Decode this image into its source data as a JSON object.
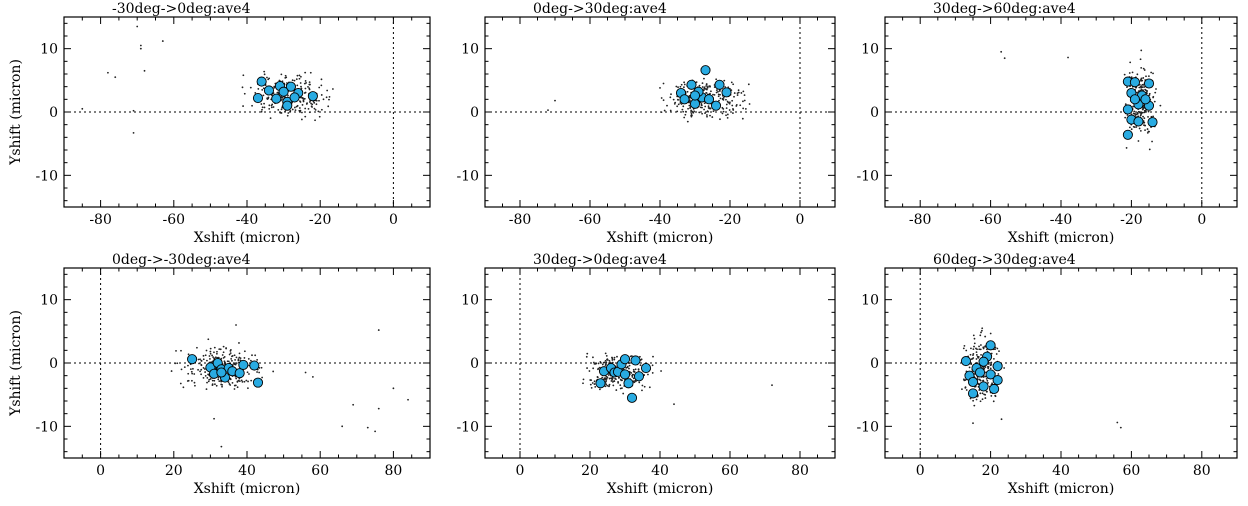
{
  "figure": {
    "shared_ylabel": "Yshift (micron)",
    "colors": {
      "points": "#222222",
      "markers": "#29abe2",
      "marker_edge": "#000000",
      "axis": "#000000",
      "reference_lines": "#000000"
    }
  },
  "chart_data": [
    {
      "type": "scatter",
      "title": "-30deg->0deg:ave4",
      "xlabel": "Xshift (micron)",
      "ylabel": "Yshift (micron)",
      "xlim": [
        -90,
        10
      ],
      "ylim": [
        -15,
        15
      ],
      "xticks": [
        -80,
        -60,
        -40,
        -20,
        0
      ],
      "yticks": [
        -10,
        0,
        10
      ],
      "reference_lines": {
        "x": 0,
        "y": 0
      },
      "cloud": {
        "center": [
          -28,
          2.5
        ],
        "spread": [
          5,
          1.5
        ],
        "count": 260
      },
      "outliers": [
        [
          -85,
          0.5
        ],
        [
          -78,
          6.2
        ],
        [
          -76,
          5.5
        ],
        [
          -70,
          13.5
        ],
        [
          -69,
          10.5
        ],
        [
          -69,
          10
        ],
        [
          -68,
          6.5
        ],
        [
          -63,
          11.2
        ],
        [
          -71,
          -3.3
        ],
        [
          -71,
          0.2
        ],
        [
          -41,
          5.8
        ]
      ],
      "markers": [
        [
          -36,
          4.8
        ],
        [
          -37,
          2.2
        ],
        [
          -34,
          3.4
        ],
        [
          -31,
          4.1
        ],
        [
          -32,
          2.1
        ],
        [
          -29,
          1.6
        ],
        [
          -28,
          4.0
        ],
        [
          -26,
          3.0
        ],
        [
          -30,
          3.2
        ],
        [
          -22,
          2.5
        ],
        [
          -27,
          2.3
        ],
        [
          -29,
          1.0
        ]
      ]
    },
    {
      "type": "scatter",
      "title": "0deg->30deg:ave4",
      "xlabel": "Xshift (micron)",
      "ylabel": "",
      "xlim": [
        -90,
        10
      ],
      "ylim": [
        -15,
        15
      ],
      "xticks": [
        -80,
        -60,
        -40,
        -20,
        0
      ],
      "yticks": [
        -10,
        0,
        10
      ],
      "reference_lines": {
        "x": 0,
        "y": 0
      },
      "cloud": {
        "center": [
          -27,
          2.0
        ],
        "spread": [
          5,
          1.5
        ],
        "count": 280
      },
      "outliers": [
        [
          -70,
          1.8
        ],
        [
          -72,
          0.3
        ],
        [
          -39,
          4.5
        ],
        [
          -40,
          3.8
        ],
        [
          -38,
          1.0
        ]
      ],
      "markers": [
        [
          -34,
          3.0
        ],
        [
          -33,
          2.0
        ],
        [
          -31,
          4.3
        ],
        [
          -30,
          1.3
        ],
        [
          -28,
          2.3
        ],
        [
          -27,
          6.6
        ],
        [
          -26,
          2.0
        ],
        [
          -24,
          1.0
        ],
        [
          -23,
          4.3
        ],
        [
          -29,
          3.2
        ],
        [
          -21,
          3.1
        ],
        [
          -30,
          2.6
        ]
      ]
    },
    {
      "type": "scatter",
      "title": "30deg->60deg:ave4",
      "xlabel": "Xshift (micron)",
      "ylabel": "",
      "xlim": [
        -90,
        10
      ],
      "ylim": [
        -15,
        15
      ],
      "xticks": [
        -80,
        -60,
        -40,
        -20,
        0
      ],
      "yticks": [
        -10,
        0,
        10
      ],
      "reference_lines": {
        "x": 0,
        "y": 0
      },
      "cloud": {
        "center": [
          -17.5,
          1.5
        ],
        "spread": [
          2.2,
          2.8
        ],
        "count": 230
      },
      "outliers": [
        [
          -57,
          9.5
        ],
        [
          -56,
          8.5
        ],
        [
          -38,
          8.6
        ]
      ],
      "markers": [
        [
          -21,
          4.8
        ],
        [
          -19,
          4.7
        ],
        [
          -15,
          4.5
        ],
        [
          -20,
          3.0
        ],
        [
          -17,
          2.6
        ],
        [
          -21,
          0.4
        ],
        [
          -18,
          1.2
        ],
        [
          -15,
          1.0
        ],
        [
          -16,
          2.0
        ],
        [
          -20,
          -1.2
        ],
        [
          -18,
          -1.5
        ],
        [
          -21,
          -3.6
        ],
        [
          -14,
          -1.6
        ],
        [
          -19,
          2.0
        ]
      ]
    },
    {
      "type": "scatter",
      "title": "0deg->-30deg:ave4",
      "xlabel": "Xshift (micron)",
      "ylabel": "Yshift (micron)",
      "xlim": [
        -10,
        90
      ],
      "ylim": [
        -15,
        15
      ],
      "xticks": [
        0,
        20,
        40,
        60,
        80
      ],
      "yticks": [
        -10,
        0,
        10
      ],
      "reference_lines": {
        "x": 0,
        "y": 0
      },
      "cloud": {
        "center": [
          33,
          -0.8
        ],
        "spread": [
          5,
          1.6
        ],
        "count": 270
      },
      "outliers": [
        [
          37,
          6.0
        ],
        [
          76,
          5.2
        ],
        [
          31,
          -8.8
        ],
        [
          33,
          -13.2
        ],
        [
          56,
          -1.5
        ],
        [
          58,
          -2.2
        ],
        [
          66,
          -10.0
        ],
        [
          69,
          -6.6
        ],
        [
          73,
          -10.2
        ],
        [
          75,
          -10.8
        ],
        [
          76,
          -7.2
        ],
        [
          80,
          -4.0
        ],
        [
          84,
          -5.8
        ]
      ],
      "markers": [
        [
          25,
          0.6
        ],
        [
          30,
          -0.7
        ],
        [
          31,
          -1.7
        ],
        [
          32,
          0.0
        ],
        [
          33,
          -1.0
        ],
        [
          34,
          -2.3
        ],
        [
          35,
          -0.8
        ],
        [
          36,
          -1.3
        ],
        [
          38,
          -1.6
        ],
        [
          39,
          -0.3
        ],
        [
          42,
          -0.4
        ],
        [
          43,
          -3.1
        ],
        [
          33,
          -1.5
        ]
      ]
    },
    {
      "type": "scatter",
      "title": "30deg->0deg:ave4",
      "xlabel": "Xshift (micron)",
      "ylabel": "",
      "xlim": [
        -10,
        90
      ],
      "ylim": [
        -15,
        15
      ],
      "xticks": [
        0,
        20,
        40,
        60,
        80
      ],
      "yticks": [
        -10,
        0,
        10
      ],
      "reference_lines": {
        "x": 0,
        "y": 0
      },
      "cloud": {
        "center": [
          28,
          -1.3
        ],
        "spread": [
          4.5,
          1.4
        ],
        "count": 260
      },
      "outliers": [
        [
          44,
          -6.5
        ],
        [
          72,
          -3.5
        ],
        [
          18,
          -3.2
        ],
        [
          38,
          1.0
        ]
      ],
      "markers": [
        [
          23,
          -3.2
        ],
        [
          24,
          -1.3
        ],
        [
          26,
          -0.8
        ],
        [
          27,
          -1.5
        ],
        [
          28,
          -1.4
        ],
        [
          29,
          -0.2
        ],
        [
          30,
          -1.8
        ],
        [
          31,
          -3.2
        ],
        [
          32,
          -5.5
        ],
        [
          33,
          0.4
        ],
        [
          34,
          -2.1
        ],
        [
          36,
          -0.8
        ],
        [
          30,
          0.6
        ]
      ]
    },
    {
      "type": "scatter",
      "title": "60deg->30deg:ave4",
      "xlabel": "Xshift (micron)",
      "ylabel": "",
      "xlim": [
        -10,
        90
      ],
      "ylim": [
        -15,
        15
      ],
      "xticks": [
        0,
        20,
        40,
        60,
        80
      ],
      "yticks": [
        -10,
        0,
        10
      ],
      "reference_lines": {
        "x": 0,
        "y": 0
      },
      "cloud": {
        "center": [
          17.5,
          -1.0
        ],
        "spread": [
          2.4,
          2.6
        ],
        "count": 240
      },
      "outliers": [
        [
          15,
          -9.5
        ],
        [
          56,
          -9.4
        ],
        [
          57,
          -10.2
        ]
      ],
      "markers": [
        [
          13,
          0.3
        ],
        [
          14,
          -2.0
        ],
        [
          15,
          -3.0
        ],
        [
          15,
          -4.8
        ],
        [
          16,
          -0.8
        ],
        [
          17,
          -1.5
        ],
        [
          18,
          -3.7
        ],
        [
          19,
          1.0
        ],
        [
          20,
          -1.8
        ],
        [
          20,
          2.8
        ],
        [
          21,
          -4.1
        ],
        [
          22,
          -0.5
        ],
        [
          22,
          -2.7
        ],
        [
          18,
          0.2
        ]
      ]
    }
  ]
}
